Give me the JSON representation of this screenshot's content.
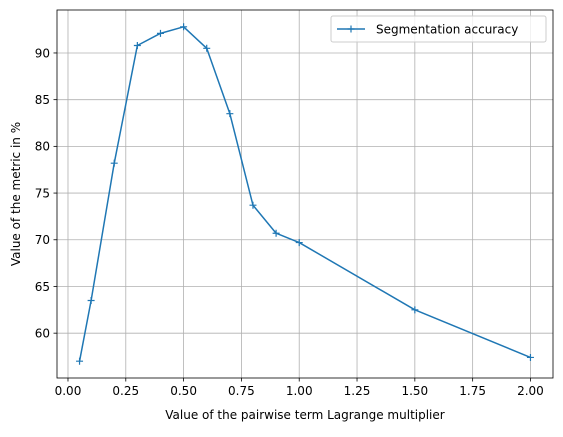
{
  "chart_data": {
    "type": "line",
    "title": "",
    "xlabel": "Value of the pairwise term Lagrange multiplier",
    "ylabel": "Value of the metric in %",
    "xlim": [
      -0.0475,
      2.0975
    ],
    "ylim": [
      55.2,
      94.6
    ],
    "xticks": [
      0.0,
      0.25,
      0.5,
      0.75,
      1.0,
      1.25,
      1.5,
      1.75,
      2.0
    ],
    "xtick_labels": [
      "0.00",
      "0.25",
      "0.50",
      "0.75",
      "1.00",
      "1.25",
      "1.50",
      "1.75",
      "2.00"
    ],
    "yticks": [
      60,
      65,
      70,
      75,
      80,
      85,
      90
    ],
    "ytick_labels": [
      "60",
      "65",
      "70",
      "75",
      "80",
      "85",
      "90"
    ],
    "grid": true,
    "legend_position": "top-right",
    "series": [
      {
        "name": "Segmentation accuracy",
        "color": "#1f77b4",
        "marker": "plus",
        "x": [
          0.05,
          0.1,
          0.2,
          0.3,
          0.4,
          0.5,
          0.6,
          0.7,
          0.8,
          0.9,
          1.0,
          1.5,
          2.0
        ],
        "y": [
          57.0,
          63.5,
          78.2,
          90.8,
          92.1,
          92.8,
          90.5,
          83.5,
          73.7,
          70.7,
          69.7,
          62.5,
          57.4
        ]
      }
    ]
  }
}
